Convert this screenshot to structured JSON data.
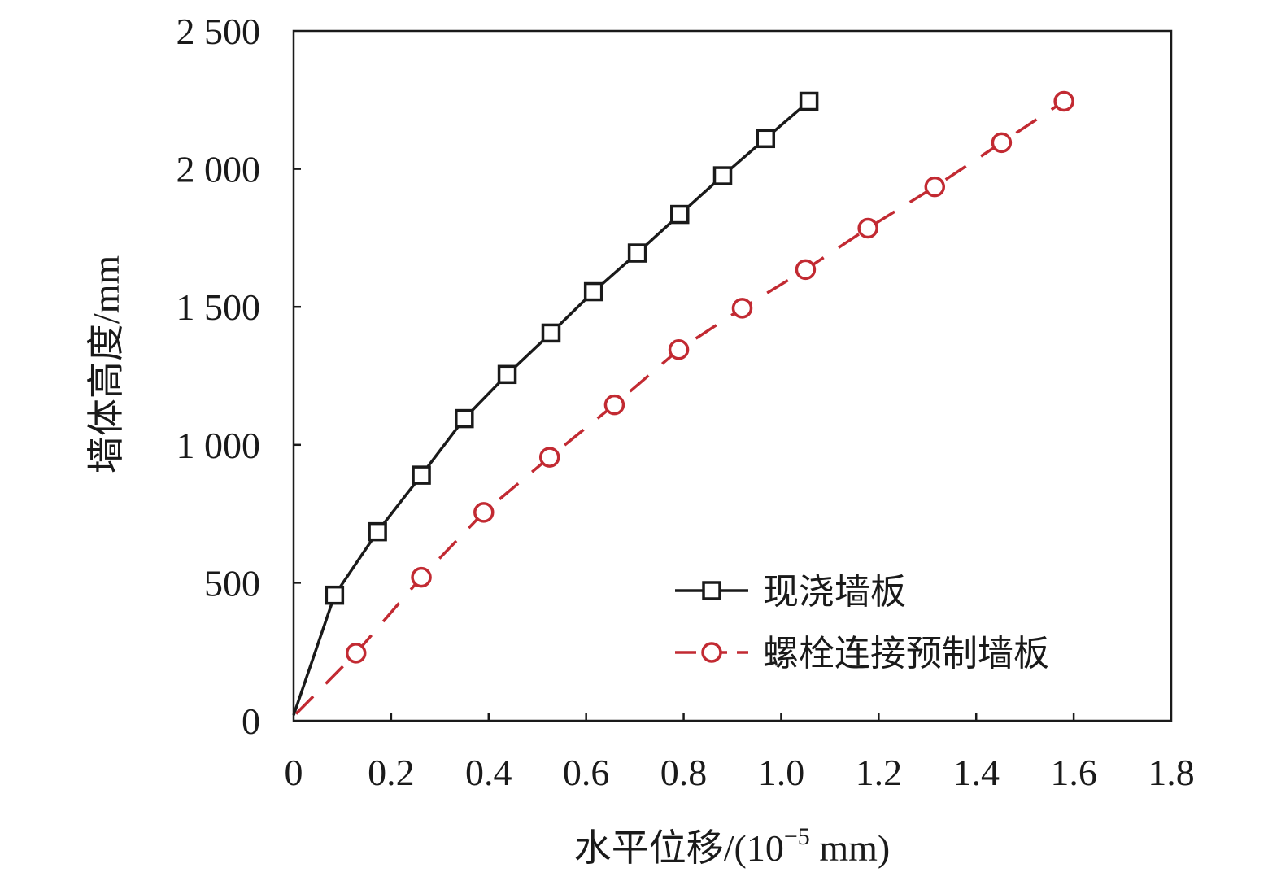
{
  "chart_data": {
    "type": "line",
    "title": "",
    "xlabel": "水平位移/(10",
    "xlabel_sup": "−5",
    "xlabel_tail": " mm)",
    "ylabel": "墙体高度/mm",
    "xlim": [
      0,
      1.8
    ],
    "ylim": [
      0,
      2500
    ],
    "xticks": [
      0,
      0.2,
      0.4,
      0.6,
      0.8,
      1.0,
      1.2,
      1.4,
      1.6,
      1.8
    ],
    "xtick_labels": [
      "0",
      "0.2",
      "0.4",
      "0.6",
      "0.8",
      "1.0",
      "1.2",
      "1.4",
      "1.6",
      "1.8"
    ],
    "yticks": [
      0,
      500,
      1000,
      1500,
      2000,
      2500
    ],
    "ytick_labels": [
      "0",
      "500",
      "1 000",
      "1 500",
      "2 000",
      "2 500"
    ],
    "grid": false,
    "legend_position": "lower-right",
    "series": [
      {
        "name": "现浇墙板",
        "color": "#1a1a1a",
        "marker": "square",
        "line_style": "solid",
        "points": [
          [
            0,
            20
          ],
          [
            0.084,
            455
          ],
          [
            0.172,
            685
          ],
          [
            0.262,
            890
          ],
          [
            0.35,
            1095
          ],
          [
            0.438,
            1255
          ],
          [
            0.528,
            1405
          ],
          [
            0.615,
            1555
          ],
          [
            0.705,
            1695
          ],
          [
            0.792,
            1835
          ],
          [
            0.88,
            1975
          ],
          [
            0.968,
            2110
          ],
          [
            1.057,
            2245
          ]
        ]
      },
      {
        "name": "螺栓连接预制墙板",
        "color": "#c22a32",
        "marker": "circle",
        "line_style": "dashed",
        "points": [
          [
            0.005,
            25
          ],
          [
            0.128,
            245
          ],
          [
            0.262,
            520
          ],
          [
            0.39,
            755
          ],
          [
            0.525,
            955
          ],
          [
            0.658,
            1145
          ],
          [
            0.79,
            1345
          ],
          [
            0.92,
            1495
          ],
          [
            1.05,
            1635
          ],
          [
            1.178,
            1785
          ],
          [
            1.315,
            1935
          ],
          [
            1.452,
            2095
          ],
          [
            1.58,
            2245
          ]
        ]
      }
    ]
  }
}
